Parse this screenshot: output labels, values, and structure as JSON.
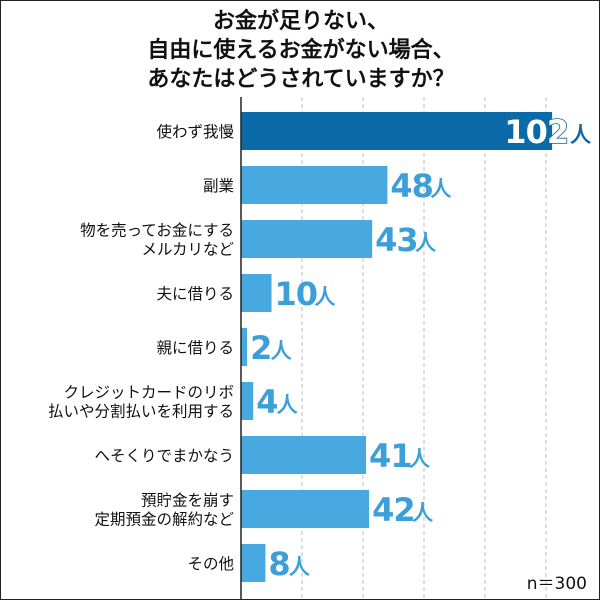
{
  "title_lines": [
    "お金が足りない、",
    "自由に使えるお金がない場合、",
    "あなたはどうされていますか？"
  ],
  "sample_note": "n＝300",
  "unit": "人",
  "colors": {
    "bar": "#47a9e0",
    "bar_highlight": "#0b6aa8",
    "value_text": "#3d9fd8",
    "highlight_value_text": "#0b6aa8",
    "label_text": "#111111",
    "grid": "#bdbdbd",
    "axis": "#222222"
  },
  "chart_data": {
    "type": "bar",
    "orientation": "horizontal",
    "title": "お金が足りない、自由に使えるお金がない場合、あなたはどうされていますか？",
    "categories": [
      [
        "使わず我慢"
      ],
      [
        "副業"
      ],
      [
        "物を売ってお金にする",
        "メルカリなど"
      ],
      [
        "夫に借りる"
      ],
      [
        "親に借りる"
      ],
      [
        "クレジットカードのリボ",
        "払いや分割払いを利用する"
      ],
      [
        "へそくりでまかなう"
      ],
      [
        "預貯金を崩す",
        "定期預金の解約など"
      ],
      [
        "その他"
      ]
    ],
    "values": [
      102,
      48,
      43,
      10,
      2,
      4,
      41,
      42,
      8
    ],
    "value_labels": [
      "102",
      "48",
      "43",
      "10",
      "2",
      "4",
      "41",
      "42",
      "8"
    ],
    "highlight_index": 0,
    "xlim": [
      0,
      105
    ],
    "grid": true,
    "gridline_values": [
      20,
      40,
      60,
      80,
      100
    ]
  }
}
